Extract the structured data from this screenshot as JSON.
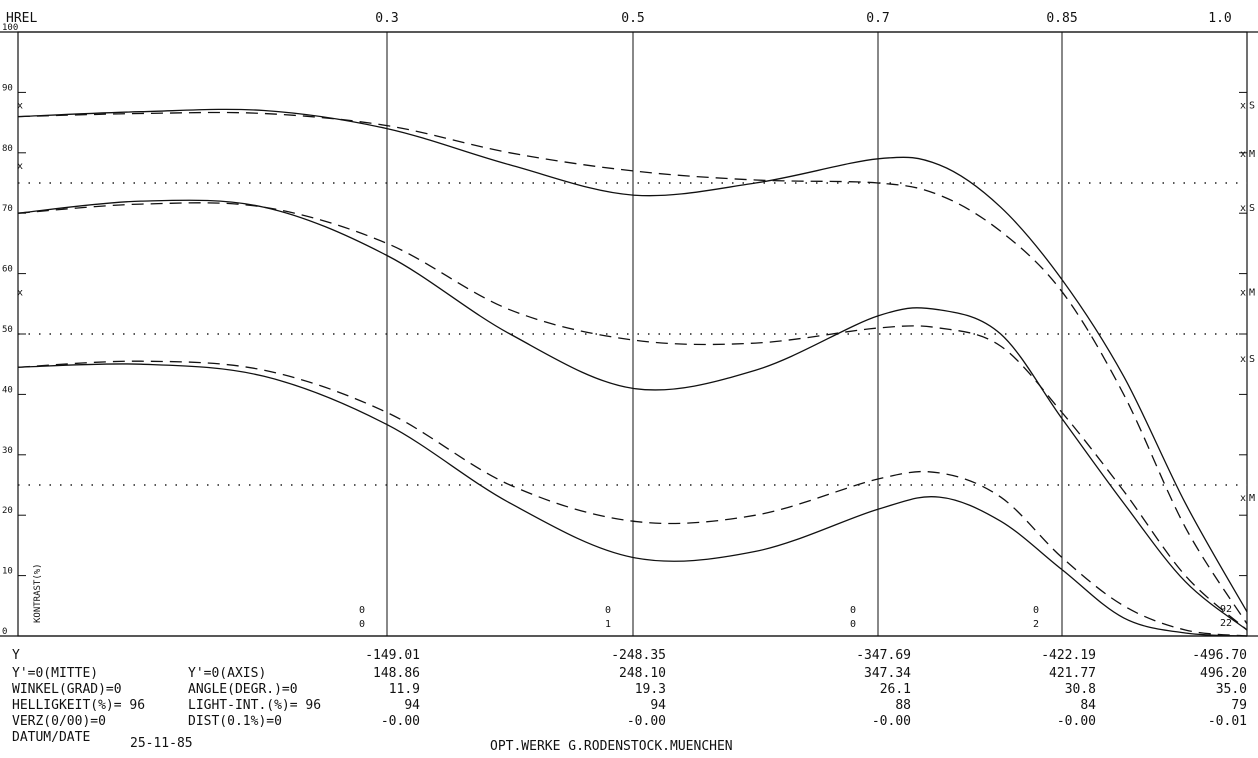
{
  "chart_data": {
    "type": "line",
    "header": {
      "x_label": "HREL",
      "x_ticks": [
        "0.3",
        "0.5",
        "0.7",
        "0.85",
        "1.0"
      ],
      "x_tick_values": [
        0.3,
        0.5,
        0.7,
        0.85,
        1.0
      ]
    },
    "ylabel": "KONTRAST(%)",
    "ylim": [
      0,
      100
    ],
    "xlim": [
      0,
      1.0
    ],
    "y_ticks": [
      "0",
      "10",
      "20",
      "30",
      "40",
      "50",
      "60",
      "70",
      "80",
      "90",
      "100"
    ],
    "reference_lines": [
      25,
      50,
      75
    ],
    "series": [
      {
        "style": "solid",
        "x": [
          0,
          0.1,
          0.2,
          0.3,
          0.4,
          0.5,
          0.6,
          0.7,
          0.75,
          0.8,
          0.85,
          0.9,
          0.95,
          1.0
        ],
        "y": [
          86,
          86.8,
          87,
          84,
          78,
          73,
          75,
          79,
          78,
          71,
          59,
          43,
          22,
          4
        ]
      },
      {
        "style": "dashed",
        "x": [
          0,
          0.1,
          0.2,
          0.3,
          0.4,
          0.5,
          0.6,
          0.7,
          0.75,
          0.8,
          0.85,
          0.9,
          0.95,
          1.0
        ],
        "y": [
          86,
          86.5,
          86.5,
          84.5,
          80,
          77,
          75.5,
          75,
          73,
          67,
          57,
          40,
          18,
          2
        ]
      },
      {
        "style": "solid",
        "x": [
          0,
          0.1,
          0.2,
          0.3,
          0.4,
          0.5,
          0.6,
          0.7,
          0.75,
          0.8,
          0.85,
          0.9,
          0.95,
          1.0
        ],
        "y": [
          70,
          72,
          71,
          63,
          50,
          41,
          44,
          53,
          54,
          50,
          36,
          22,
          9,
          1
        ]
      },
      {
        "style": "dashed",
        "x": [
          0,
          0.1,
          0.2,
          0.3,
          0.4,
          0.5,
          0.6,
          0.7,
          0.75,
          0.8,
          0.85,
          0.9,
          0.95,
          1.0
        ],
        "y": [
          70,
          71.5,
          71,
          65,
          54,
          49,
          48.5,
          51,
          51,
          48,
          37,
          24,
          10,
          1
        ]
      },
      {
        "style": "solid",
        "x": [
          0,
          0.1,
          0.2,
          0.3,
          0.4,
          0.5,
          0.6,
          0.7,
          0.75,
          0.8,
          0.85,
          0.9,
          0.95,
          1.0
        ],
        "y": [
          44.5,
          45,
          43,
          35,
          22,
          13,
          14,
          21,
          23,
          19,
          11,
          3,
          0.5,
          0
        ]
      },
      {
        "style": "dashed",
        "x": [
          0,
          0.1,
          0.2,
          0.3,
          0.4,
          0.5,
          0.6,
          0.7,
          0.75,
          0.8,
          0.85,
          0.9,
          0.95,
          1.0
        ],
        "y": [
          44.5,
          45.5,
          44,
          37,
          25,
          19,
          20,
          26,
          27,
          23,
          13,
          5,
          1,
          0
        ]
      }
    ],
    "side_marks_right": [
      {
        "label": "S",
        "y": 88
      },
      {
        "label": "M",
        "y": 80
      },
      {
        "label": "S",
        "y": 71
      },
      {
        "label": "M",
        "y": 57
      },
      {
        "label": "S",
        "y": 46
      },
      {
        "label": "M",
        "y": 23
      }
    ],
    "side_marks_left": [
      88,
      78,
      57
    ],
    "column_markers": [
      {
        "x": 0.275,
        "top": "0",
        "bottom": "0"
      },
      {
        "x": 0.5,
        "top": "0",
        "bottom": "1"
      },
      {
        "x": 0.68,
        "top": "0",
        "bottom": "0"
      },
      {
        "x": 0.83,
        "top": "0",
        "bottom": "2"
      }
    ],
    "corner_labels": [
      "92",
      "22"
    ],
    "table": {
      "row_labels_left": [
        "Y",
        "Y'=0(MITTE)",
        "WINKEL(GRAD)=0",
        "HELLIGKEIT(%)= 96",
        "VERZ(0/00)=0",
        "DATUM/DATE"
      ],
      "row_labels_mid": [
        "",
        "Y'=0(AXIS)",
        "ANGLE(DEGR.)=0",
        "LIGHT-INT.(%)= 96",
        "DIST(0.1%)=0",
        ""
      ],
      "columns": [
        [
          "-149.01",
          "148.86",
          "11.9",
          "94",
          "-0.00"
        ],
        [
          "-248.35",
          "248.10",
          "19.3",
          "94",
          "-0.00"
        ],
        [
          "-347.69",
          "347.34",
          "26.1",
          "88",
          "-0.00"
        ],
        [
          "-422.19",
          "421.77",
          "30.8",
          "84",
          "-0.00"
        ],
        [
          "-496.70",
          "496.20",
          "35.0",
          "79",
          "-0.01"
        ]
      ],
      "date": "25-11-85",
      "credit": "OPT.WERKE G.RODENSTOCK.MUENCHEN"
    }
  }
}
